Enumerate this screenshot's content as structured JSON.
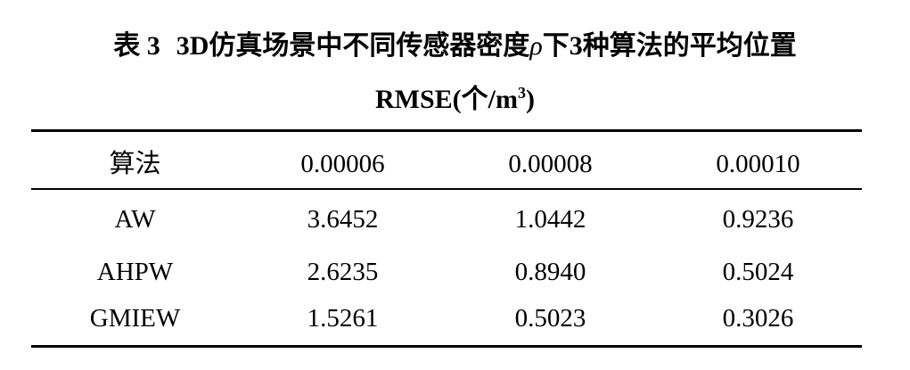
{
  "caption": {
    "label": "表 3",
    "text_before_symbol": "3D仿真场景中不同传感器密度",
    "symbol": "ρ",
    "text_after_symbol": "下3种算法的平均位置",
    "line2_main": "RMSE(个/m",
    "line2_sup": "3",
    "line2_end": ")"
  },
  "table": {
    "headers": [
      "算法",
      "0.00006",
      "0.00008",
      "0.00010"
    ],
    "rows": [
      [
        "AW",
        "3.6452",
        "1.0442",
        "0.9236"
      ],
      [
        "AHPW",
        "2.6235",
        "0.8940",
        "0.5024"
      ],
      [
        "GMIEW",
        "1.5261",
        "0.5023",
        "0.3026"
      ]
    ]
  }
}
